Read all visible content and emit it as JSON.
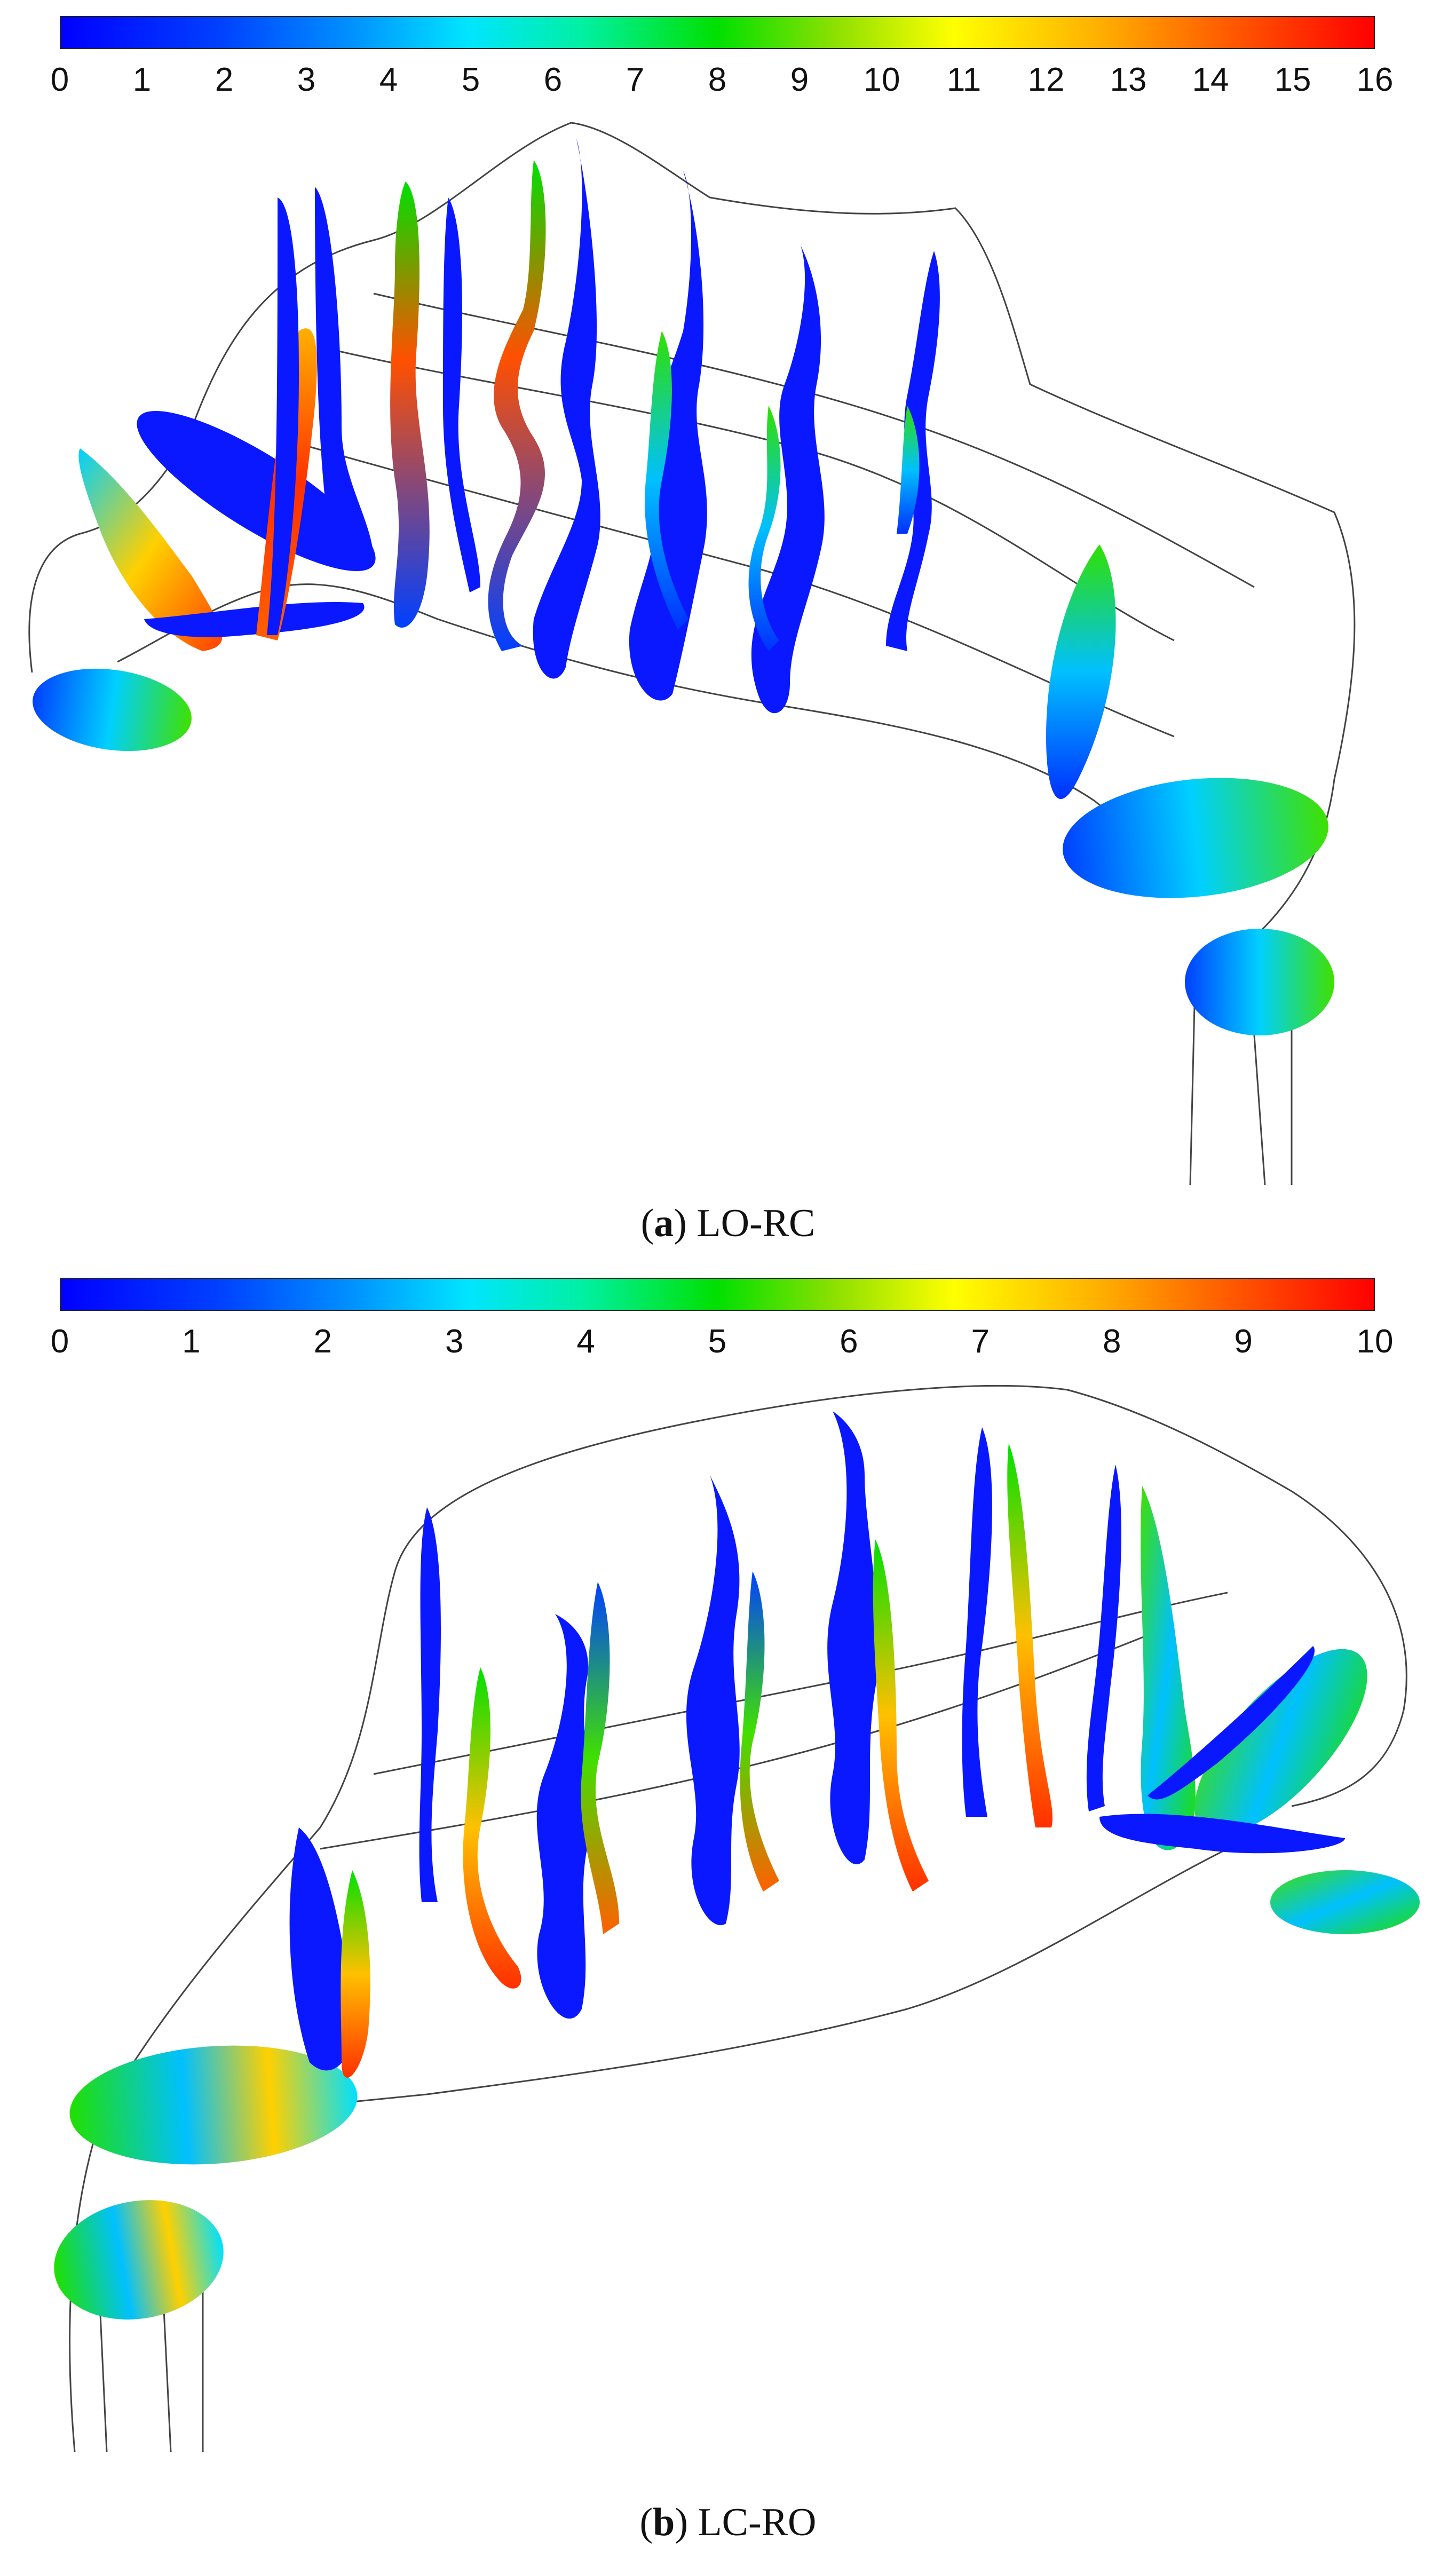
{
  "panels": [
    {
      "label": "a",
      "caption": "LO-RC",
      "colorbar": {
        "min": 0,
        "max": 16,
        "ticks": [
          "0",
          "1",
          "2",
          "3",
          "4",
          "5",
          "6",
          "7",
          "8",
          "9",
          "10",
          "11",
          "12",
          "13",
          "14",
          "15",
          "16"
        ]
      }
    },
    {
      "label": "b",
      "caption": "LC-RO",
      "colorbar": {
        "min": 0,
        "max": 10,
        "ticks": [
          "0",
          "1",
          "2",
          "3",
          "4",
          "5",
          "6",
          "7",
          "8",
          "9",
          "10"
        ]
      }
    }
  ],
  "colormap": [
    "#0000ff",
    "#0090ff",
    "#00e5ff",
    "#00e000",
    "#ffff00",
    "#ff5a00",
    "#ff0000"
  ]
}
